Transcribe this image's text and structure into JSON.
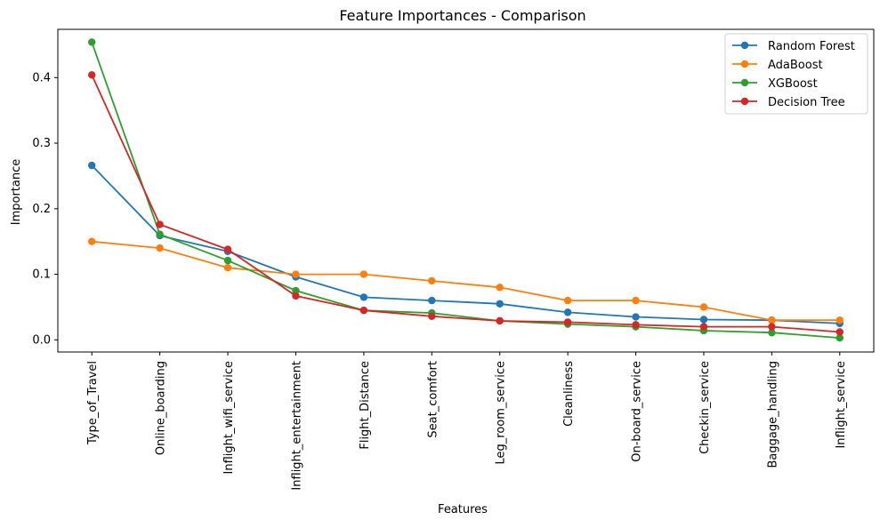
{
  "chart_data": {
    "type": "line",
    "title": "Feature Importances - Comparison",
    "xlabel": "Features",
    "ylabel": "Importance",
    "ylim": [
      -0.0185,
      0.4736
    ],
    "yticks": [
      0.0,
      0.1,
      0.2,
      0.3,
      0.4
    ],
    "ytick_labels": [
      "0.0",
      "0.1",
      "0.2",
      "0.3",
      "0.4"
    ],
    "grid": false,
    "legend_position": "top-right",
    "categories": [
      "Type_of_Travel",
      "Online_boarding",
      "Inflight_wifi_service",
      "Inflight_entertainment",
      "Flight_Distance",
      "Seat_comfort",
      "Leg_room_service",
      "Cleanliness",
      "On-board_service",
      "Checkin_service",
      "Baggage_handling",
      "Inflight_service"
    ],
    "series": [
      {
        "name": "Random Forest",
        "color": "#1f77b4",
        "values": [
          0.266,
          0.159,
          0.135,
          0.096,
          0.065,
          0.06,
          0.055,
          0.042,
          0.035,
          0.031,
          0.03,
          0.025
        ]
      },
      {
        "name": "AdaBoost",
        "color": "#ff7f0e",
        "values": [
          0.15,
          0.14,
          0.11,
          0.1,
          0.1,
          0.09,
          0.08,
          0.06,
          0.06,
          0.05,
          0.03,
          0.03
        ]
      },
      {
        "name": "XGBoost",
        "color": "#2ca02c",
        "values": [
          0.454,
          0.161,
          0.121,
          0.075,
          0.045,
          0.041,
          0.029,
          0.024,
          0.02,
          0.014,
          0.011,
          0.003
        ]
      },
      {
        "name": "Decision Tree",
        "color": "#d62728",
        "values": [
          0.404,
          0.176,
          0.138,
          0.067,
          0.045,
          0.036,
          0.029,
          0.027,
          0.023,
          0.02,
          0.02,
          0.012
        ]
      }
    ]
  }
}
